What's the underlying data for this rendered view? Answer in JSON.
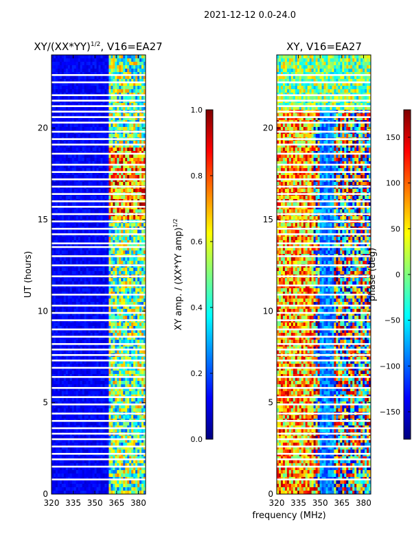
{
  "chart_data": [
    {
      "type": "heatmap",
      "suptitle": "2021-12-12 0.0-24.0",
      "title": "XY/(XX*YY)",
      "title_exp": "1/2",
      "title_tail": ", V16=EA27",
      "xlabel": "",
      "ylabel": "UT (hours)",
      "xlim": [
        320,
        385
      ],
      "ylim": [
        0,
        24
      ],
      "xticks": [
        "320",
        "335",
        "350",
        "365",
        "380"
      ],
      "yticks": [
        "0",
        "5",
        "10",
        "15",
        "20"
      ],
      "colorbar": {
        "label": "XY amp. / (XX*YY amp)",
        "label_exp": "1/2",
        "range": [
          0.0,
          1.0
        ],
        "ticks": [
          "0.0",
          "0.2",
          "0.4",
          "0.6",
          "0.8",
          "1.0"
        ]
      },
      "flagged_ut_hours": [
        0.8,
        1.5,
        1.9,
        2.2,
        2.6,
        3.0,
        3.3,
        3.6,
        4.0,
        4.4,
        4.9,
        5.3,
        5.8,
        6.4,
        6.9,
        7.3,
        7.6,
        7.9,
        8.2,
        8.6,
        9.0,
        9.5,
        9.9,
        10.3,
        10.9,
        11.4,
        11.9,
        12.5,
        13.0,
        13.5,
        13.7,
        14.2,
        14.5,
        14.9,
        15.3,
        15.7,
        16.0,
        16.4,
        16.8,
        17.2,
        17.6,
        18.0,
        18.6,
        19.1,
        19.4,
        19.8,
        20.3,
        20.6,
        20.9,
        21.2,
        21.5,
        21.8,
        22.5,
        22.9
      ],
      "high_value_band_mhz": [
        360,
        385
      ]
    },
    {
      "type": "heatmap",
      "title": "XY, V16=EA27",
      "xlabel": "frequency (MHz)",
      "ylabel": "",
      "xlim": [
        320,
        385
      ],
      "ylim": [
        0,
        24
      ],
      "xticks": [
        "320",
        "335",
        "350",
        "365",
        "380"
      ],
      "yticks": [
        "0",
        "5",
        "10",
        "15",
        "20"
      ],
      "colorbar": {
        "label": "phase (deg)",
        "range": [
          -180,
          180
        ],
        "ticks": [
          "−150",
          "−100",
          "−50",
          "0",
          "50",
          "100",
          "150"
        ]
      },
      "flagged_ut_hours": [
        0.8,
        1.5,
        1.9,
        2.2,
        2.6,
        3.0,
        3.3,
        3.6,
        4.0,
        4.4,
        4.9,
        5.3,
        5.8,
        6.4,
        6.9,
        7.3,
        7.6,
        7.9,
        8.2,
        8.6,
        9.0,
        9.5,
        9.9,
        10.3,
        10.9,
        11.4,
        11.9,
        12.5,
        13.0,
        13.5,
        13.7,
        14.2,
        14.5,
        14.9,
        15.3,
        15.7,
        16.0,
        16.4,
        16.8,
        17.2,
        17.6,
        18.0,
        18.6,
        19.1,
        19.4,
        19.8,
        20.3,
        20.6,
        20.9,
        21.2,
        21.5,
        21.8,
        22.5,
        22.9
      ]
    }
  ]
}
